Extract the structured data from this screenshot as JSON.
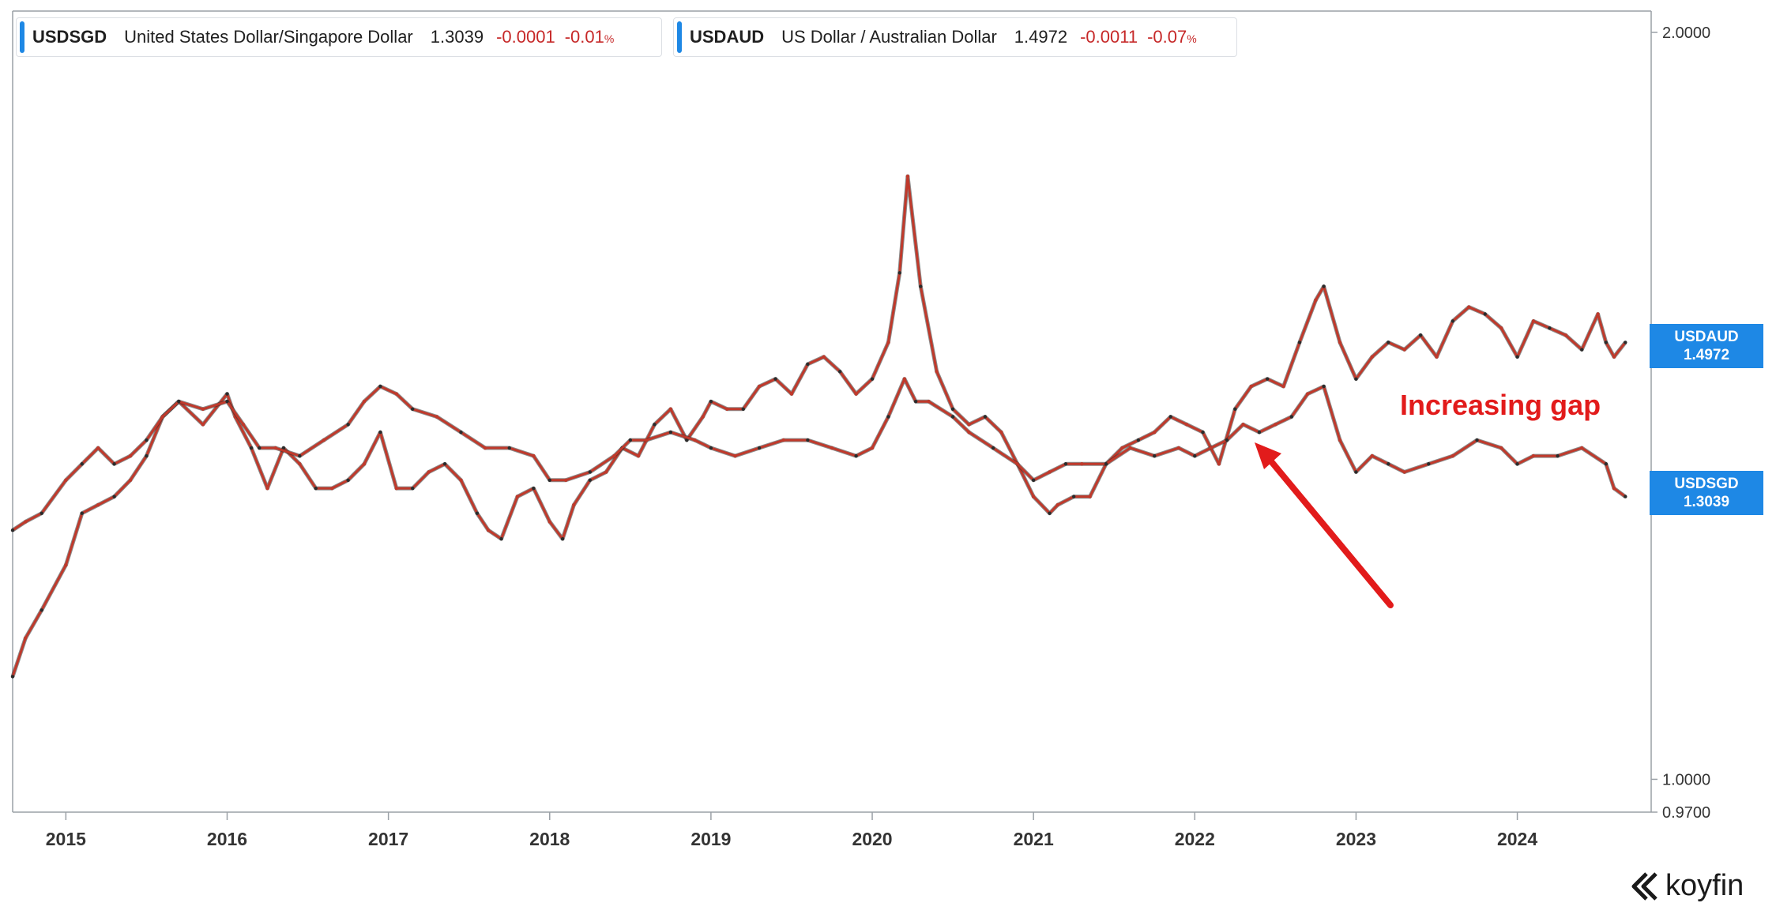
{
  "brand": {
    "name": "koyfin",
    "icon": "koyfin-logo-icon"
  },
  "legend": [
    {
      "symbol": "USDSGD",
      "name": "United States Dollar/Singapore Dollar",
      "price": "1.3039",
      "change": "-0.0001",
      "change_pct": "-0.01",
      "pct_sign": "%",
      "accent": "#1e88e5"
    },
    {
      "symbol": "USDAUD",
      "name": "US Dollar / Australian Dollar",
      "price": "1.4972",
      "change": "-0.0011",
      "change_pct": "-0.07",
      "pct_sign": "%",
      "accent": "#1e88e5"
    }
  ],
  "price_tags": [
    {
      "symbol": "USDAUD",
      "price": "1.4972"
    },
    {
      "symbol": "USDSGD",
      "price": "1.3039"
    }
  ],
  "annotation": {
    "text": "Increasing gap",
    "color": "#e21b1b"
  },
  "chart_data": {
    "type": "line",
    "title": "",
    "xlabel": "",
    "ylabel": "",
    "yscale": "log",
    "ylim": [
      0.97,
      2.0
    ],
    "xlim": [
      2014.67,
      2024.83
    ],
    "y_ticks": [
      "2.0000",
      "1.0000",
      "0.9700"
    ],
    "x_ticks": [
      "2015",
      "2016",
      "2017",
      "2018",
      "2019",
      "2020",
      "2021",
      "2022",
      "2023",
      "2024"
    ],
    "candle_colors": {
      "down": "#c0392b",
      "up": "#2b2b2b"
    },
    "grid": false,
    "legend_position": "top-left",
    "series": [
      {
        "name": "USDAUD",
        "x": [
          2014.67,
          2014.75,
          2014.85,
          2015.0,
          2015.1,
          2015.2,
          2015.3,
          2015.4,
          2015.5,
          2015.6,
          2015.7,
          2015.85,
          2016.0,
          2016.05,
          2016.15,
          2016.25,
          2016.35,
          2016.45,
          2016.55,
          2016.65,
          2016.75,
          2016.85,
          2016.95,
          2017.05,
          2017.15,
          2017.25,
          2017.35,
          2017.45,
          2017.55,
          2017.62,
          2017.7,
          2017.8,
          2017.9,
          2018.0,
          2018.08,
          2018.15,
          2018.25,
          2018.35,
          2018.45,
          2018.55,
          2018.65,
          2018.75,
          2018.85,
          2018.95,
          2019.0,
          2019.1,
          2019.2,
          2019.3,
          2019.4,
          2019.5,
          2019.6,
          2019.7,
          2019.8,
          2019.9,
          2020.0,
          2020.1,
          2020.17,
          2020.22,
          2020.3,
          2020.4,
          2020.5,
          2020.6,
          2020.7,
          2020.8,
          2020.9,
          2021.0,
          2021.1,
          2021.15,
          2021.25,
          2021.35,
          2021.45,
          2021.55,
          2021.65,
          2021.75,
          2021.85,
          2021.95,
          2022.05,
          2022.15,
          2022.25,
          2022.35,
          2022.45,
          2022.55,
          2022.65,
          2022.75,
          2022.8,
          2022.9,
          2023.0,
          2023.1,
          2023.2,
          2023.3,
          2023.4,
          2023.5,
          2023.6,
          2023.7,
          2023.8,
          2023.9,
          2024.0,
          2024.1,
          2024.2,
          2024.3,
          2024.4,
          2024.5,
          2024.55,
          2024.6,
          2024.67
        ],
        "y": [
          1.1,
          1.14,
          1.17,
          1.22,
          1.28,
          1.29,
          1.3,
          1.32,
          1.35,
          1.4,
          1.42,
          1.39,
          1.43,
          1.4,
          1.36,
          1.31,
          1.36,
          1.34,
          1.31,
          1.31,
          1.32,
          1.34,
          1.38,
          1.31,
          1.31,
          1.33,
          1.34,
          1.32,
          1.28,
          1.26,
          1.25,
          1.3,
          1.31,
          1.27,
          1.25,
          1.29,
          1.32,
          1.33,
          1.36,
          1.35,
          1.39,
          1.41,
          1.37,
          1.4,
          1.42,
          1.41,
          1.41,
          1.44,
          1.45,
          1.43,
          1.47,
          1.48,
          1.46,
          1.43,
          1.45,
          1.5,
          1.6,
          1.75,
          1.58,
          1.46,
          1.41,
          1.39,
          1.4,
          1.38,
          1.34,
          1.3,
          1.28,
          1.29,
          1.3,
          1.3,
          1.34,
          1.36,
          1.37,
          1.38,
          1.4,
          1.39,
          1.38,
          1.34,
          1.41,
          1.44,
          1.45,
          1.44,
          1.5,
          1.56,
          1.58,
          1.5,
          1.45,
          1.48,
          1.5,
          1.49,
          1.51,
          1.48,
          1.53,
          1.55,
          1.54,
          1.52,
          1.48,
          1.53,
          1.52,
          1.51,
          1.49,
          1.54,
          1.5,
          1.48,
          1.5
        ]
      },
      {
        "name": "USDSGD",
        "x": [
          2014.67,
          2014.75,
          2014.85,
          2015.0,
          2015.1,
          2015.2,
          2015.3,
          2015.4,
          2015.5,
          2015.6,
          2015.7,
          2015.85,
          2016.0,
          2016.1,
          2016.2,
          2016.3,
          2016.45,
          2016.6,
          2016.75,
          2016.85,
          2016.95,
          2017.05,
          2017.15,
          2017.3,
          2017.45,
          2017.6,
          2017.75,
          2017.9,
          2018.0,
          2018.1,
          2018.25,
          2018.4,
          2018.5,
          2018.6,
          2018.75,
          2018.9,
          2019.0,
          2019.15,
          2019.3,
          2019.45,
          2019.6,
          2019.75,
          2019.9,
          2020.0,
          2020.1,
          2020.2,
          2020.27,
          2020.35,
          2020.5,
          2020.6,
          2020.75,
          2020.9,
          2021.0,
          2021.1,
          2021.2,
          2021.3,
          2021.45,
          2021.6,
          2021.75,
          2021.9,
          2022.0,
          2022.1,
          2022.2,
          2022.3,
          2022.4,
          2022.5,
          2022.6,
          2022.7,
          2022.8,
          2022.9,
          2023.0,
          2023.1,
          2023.2,
          2023.3,
          2023.45,
          2023.6,
          2023.75,
          2023.9,
          2024.0,
          2024.1,
          2024.25,
          2024.4,
          2024.55,
          2024.6,
          2024.67
        ],
        "y": [
          1.26,
          1.27,
          1.28,
          1.32,
          1.34,
          1.36,
          1.34,
          1.35,
          1.37,
          1.4,
          1.42,
          1.41,
          1.42,
          1.39,
          1.36,
          1.36,
          1.35,
          1.37,
          1.39,
          1.42,
          1.44,
          1.43,
          1.41,
          1.4,
          1.38,
          1.36,
          1.36,
          1.35,
          1.32,
          1.32,
          1.33,
          1.35,
          1.37,
          1.37,
          1.38,
          1.37,
          1.36,
          1.35,
          1.36,
          1.37,
          1.37,
          1.36,
          1.35,
          1.36,
          1.4,
          1.45,
          1.42,
          1.42,
          1.4,
          1.38,
          1.36,
          1.34,
          1.32,
          1.33,
          1.34,
          1.34,
          1.34,
          1.36,
          1.35,
          1.36,
          1.35,
          1.36,
          1.37,
          1.39,
          1.38,
          1.39,
          1.4,
          1.43,
          1.44,
          1.37,
          1.33,
          1.35,
          1.34,
          1.33,
          1.34,
          1.35,
          1.37,
          1.36,
          1.34,
          1.35,
          1.35,
          1.36,
          1.34,
          1.31,
          1.3
        ]
      }
    ]
  }
}
